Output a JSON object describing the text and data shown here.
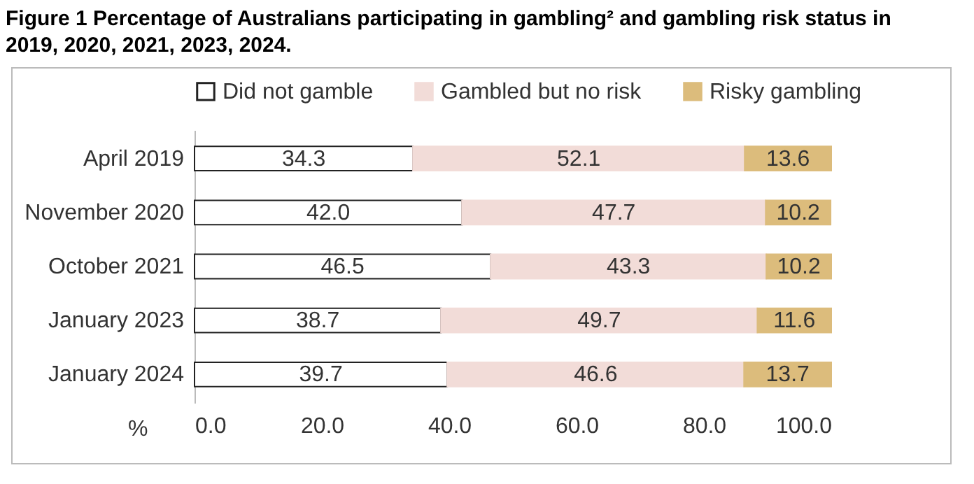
{
  "chart_data": {
    "type": "bar",
    "orientation": "horizontal",
    "stacked": true,
    "title": "Figure 1 Percentage of Australians participating in gambling² and gambling risk status in 2019, 2020, 2021, 2023, 2024.",
    "xlabel": "%",
    "categories": [
      "April 2019",
      "November 2020",
      "October 2021",
      "January 2023",
      "January 2024"
    ],
    "series": [
      {
        "name": "Did not gamble",
        "color": "#ffffff",
        "values": [
          34.3,
          42.0,
          46.5,
          38.7,
          39.7
        ],
        "value_labels": [
          "34.3",
          "42.0",
          "46.5",
          "38.7",
          "39.7"
        ]
      },
      {
        "name": "Gambled but no risk",
        "color": "#f2dcd8",
        "values": [
          52.1,
          47.7,
          43.3,
          49.7,
          46.6
        ],
        "value_labels": [
          "52.1",
          "47.7",
          "43.3",
          "49.7",
          "46.6"
        ]
      },
      {
        "name": "Risky gambling",
        "color": "#dcbc7c",
        "values": [
          13.6,
          10.2,
          10.2,
          11.6,
          13.7
        ],
        "value_labels": [
          "13.6",
          "10.2",
          "10.2",
          "11.6",
          "13.7"
        ]
      }
    ],
    "xlim": [
      0,
      100
    ],
    "xticks": [
      {
        "value": 0,
        "label": "0.0"
      },
      {
        "value": 20,
        "label": "20.0"
      },
      {
        "value": 40,
        "label": "40.0"
      },
      {
        "value": 60,
        "label": "60.0"
      },
      {
        "value": 80,
        "label": "80.0"
      },
      {
        "value": 100,
        "label": "100.0"
      }
    ],
    "legend": "top",
    "grid": false
  }
}
